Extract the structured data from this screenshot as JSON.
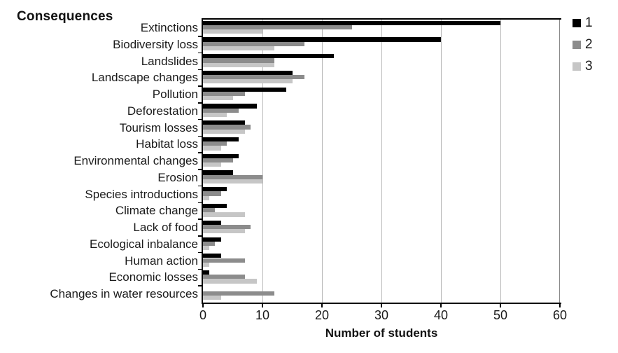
{
  "chart_data": {
    "type": "bar",
    "orientation": "horizontal",
    "title": "Consequences",
    "xlabel": "Number of students",
    "xlim": [
      0,
      60
    ],
    "xticks": [
      0,
      10,
      20,
      30,
      40,
      50,
      60
    ],
    "grid": "vertical-gridlines-every-10",
    "legend_position": "top-right",
    "categories": [
      "Extinctions",
      "Biodiversity loss",
      "Landslides",
      "Landscape changes",
      "Pollution",
      "Deforestation",
      "Tourism losses",
      "Habitat loss",
      "Environmental changes",
      "Erosion",
      "Species introductions",
      "Climate change",
      "Lack of food",
      "Ecological inbalance",
      "Human action",
      "Economic losses",
      "Changes in water resources"
    ],
    "series": [
      {
        "name": "1",
        "color": "#000000",
        "values": [
          50,
          40,
          22,
          15,
          14,
          9,
          7,
          6,
          6,
          5,
          4,
          4,
          3,
          3,
          3,
          1,
          0
        ]
      },
      {
        "name": "2",
        "color": "#8c8c8c",
        "values": [
          25,
          17,
          12,
          17,
          7,
          6,
          8,
          4,
          5,
          10,
          3,
          2,
          8,
          2,
          7,
          7,
          12
        ]
      },
      {
        "name": "3",
        "color": "#c6c6c6",
        "values": [
          10,
          12,
          12,
          15,
          5,
          4,
          7,
          3,
          3,
          10,
          1,
          7,
          7,
          1,
          1,
          9,
          3
        ]
      }
    ]
  },
  "colors": {
    "series1": "#000000",
    "series2": "#8c8c8c",
    "series3": "#c6c6c6",
    "gridline": "#b8b8b8",
    "axis": "#000000"
  }
}
